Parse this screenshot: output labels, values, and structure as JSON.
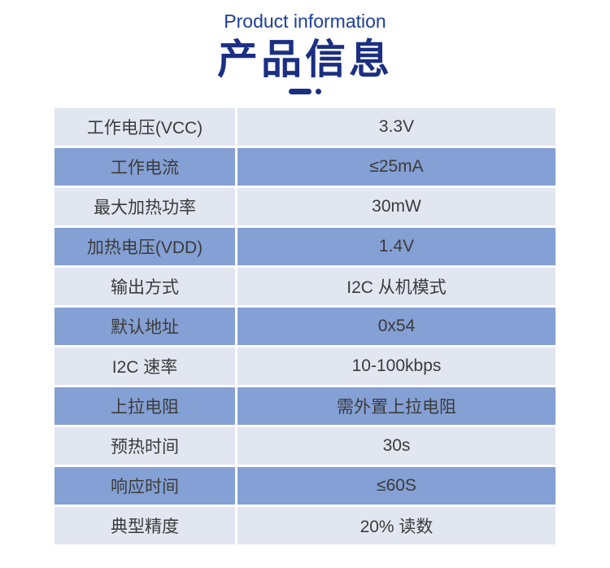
{
  "colors": {
    "page_bg": "#ffffff",
    "subtitle_color": "#1e3e9b",
    "title_color": "#1b2f82",
    "row_light": "#e2e6f1",
    "row_blue": "#84a0d4",
    "divider": "#ffffff",
    "cell_text": "#3b3b3b"
  },
  "header": {
    "subtitle": "Product information",
    "title": "产品信息"
  },
  "table": {
    "columns": [
      "parameter",
      "value"
    ],
    "rows": [
      {
        "label": "工作电压(VCC)",
        "value": "3.3V"
      },
      {
        "label": "工作电流",
        "value": "≤25mA"
      },
      {
        "label": "最大加热功率",
        "value": "30mW"
      },
      {
        "label": "加热电压(VDD)",
        "value": "1.4V"
      },
      {
        "label": "输出方式",
        "value": "I2C 从机模式"
      },
      {
        "label": "默认地址",
        "value": "0x54"
      },
      {
        "label": "I2C 速率",
        "value": "10-100kbps"
      },
      {
        "label": "上拉电阻",
        "value": "需外置上拉电阻"
      },
      {
        "label": "预热时间",
        "value": "30s"
      },
      {
        "label": "响应时间",
        "value": "≤60S"
      },
      {
        "label": "典型精度",
        "value": "20% 读数"
      }
    ]
  }
}
